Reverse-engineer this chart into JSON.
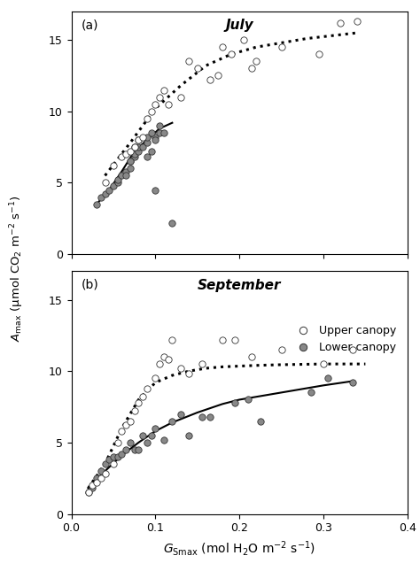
{
  "title_a": "July",
  "title_b": "September",
  "label_a": "(a)",
  "label_b": "(b)",
  "ylabel": "$A_{\\mathrm{max}}$ (μmol CO$_2$ m$^{-2}$ s$^{-1}$)",
  "xlabel": "$G_{\\mathrm{Smax}}$ (mol H$_2$O m$^{-2}$ s$^{-1}$)",
  "xlim": [
    0.0,
    0.4
  ],
  "ylim": [
    0,
    17
  ],
  "yticks": [
    0,
    5,
    10,
    15
  ],
  "xticks": [
    0.0,
    0.1,
    0.2,
    0.3,
    0.4
  ],
  "upper_color": "white",
  "lower_color": "#888888",
  "marker_edge_color": "#333333",
  "marker_size": 28,
  "july_upper_x": [
    0.04,
    0.05,
    0.06,
    0.065,
    0.07,
    0.075,
    0.08,
    0.085,
    0.09,
    0.095,
    0.1,
    0.105,
    0.11,
    0.115,
    0.13,
    0.14,
    0.15,
    0.165,
    0.175,
    0.18,
    0.19,
    0.205,
    0.215,
    0.22,
    0.25,
    0.295,
    0.32,
    0.34
  ],
  "july_upper_y": [
    5.0,
    6.2,
    6.8,
    7.0,
    7.2,
    7.5,
    8.0,
    8.2,
    9.5,
    10.0,
    10.5,
    11.0,
    11.5,
    10.5,
    11.0,
    13.5,
    13.0,
    12.2,
    12.5,
    14.5,
    14.0,
    15.0,
    13.0,
    13.5,
    14.5,
    14.0,
    16.2,
    16.3
  ],
  "july_lower_x": [
    0.03,
    0.035,
    0.04,
    0.045,
    0.05,
    0.055,
    0.055,
    0.06,
    0.065,
    0.07,
    0.07,
    0.075,
    0.075,
    0.08,
    0.08,
    0.085,
    0.09,
    0.09,
    0.095,
    0.1,
    0.1,
    0.105,
    0.105,
    0.11,
    0.065,
    0.07,
    0.075,
    0.08,
    0.09,
    0.095,
    0.1,
    0.12
  ],
  "july_lower_y": [
    3.5,
    4.0,
    4.2,
    4.5,
    4.8,
    5.0,
    5.2,
    5.5,
    5.8,
    6.0,
    6.5,
    6.8,
    7.0,
    7.2,
    7.5,
    7.5,
    7.8,
    6.8,
    7.2,
    8.2,
    8.0,
    8.5,
    9.0,
    8.5,
    5.5,
    6.5,
    7.5,
    8.0,
    8.2,
    8.5,
    4.5,
    2.2
  ],
  "july_upper_fit_x": [
    0.04,
    0.07,
    0.1,
    0.13,
    0.16,
    0.19,
    0.22,
    0.25,
    0.28,
    0.31,
    0.34
  ],
  "july_upper_fit_y": [
    5.5,
    7.8,
    10.2,
    11.8,
    13.2,
    14.0,
    14.5,
    14.8,
    15.1,
    15.3,
    15.5
  ],
  "july_lower_fit_x": [
    0.03,
    0.045,
    0.06,
    0.075,
    0.09,
    0.105,
    0.12
  ],
  "july_lower_fit_y": [
    3.5,
    4.5,
    5.8,
    7.2,
    8.0,
    8.8,
    9.2
  ],
  "sep_upper_x": [
    0.02,
    0.025,
    0.03,
    0.035,
    0.04,
    0.05,
    0.055,
    0.06,
    0.065,
    0.07,
    0.075,
    0.08,
    0.085,
    0.09,
    0.1,
    0.105,
    0.11,
    0.115,
    0.12,
    0.13,
    0.14,
    0.155,
    0.18,
    0.195,
    0.215,
    0.25,
    0.3,
    0.335
  ],
  "sep_upper_y": [
    1.5,
    2.0,
    2.2,
    2.5,
    2.8,
    3.5,
    5.0,
    5.8,
    6.2,
    6.5,
    7.2,
    7.8,
    8.2,
    8.8,
    9.5,
    10.5,
    11.0,
    10.8,
    12.2,
    10.2,
    9.8,
    10.5,
    12.2,
    12.2,
    11.0,
    11.5,
    10.5,
    11.5
  ],
  "sep_lower_x": [
    0.02,
    0.025,
    0.03,
    0.035,
    0.04,
    0.045,
    0.05,
    0.055,
    0.06,
    0.065,
    0.07,
    0.075,
    0.08,
    0.085,
    0.09,
    0.095,
    0.1,
    0.11,
    0.12,
    0.13,
    0.14,
    0.155,
    0.165,
    0.195,
    0.21,
    0.225,
    0.285,
    0.305,
    0.335
  ],
  "sep_lower_y": [
    1.5,
    1.8,
    2.5,
    3.0,
    3.5,
    3.8,
    4.0,
    4.0,
    4.2,
    4.5,
    5.0,
    4.5,
    4.5,
    5.5,
    5.0,
    5.5,
    6.0,
    5.2,
    6.5,
    7.0,
    5.5,
    6.8,
    6.8,
    7.8,
    8.0,
    6.5,
    8.5,
    9.5,
    9.2
  ],
  "sep_upper_fit_x": [
    0.02,
    0.04,
    0.06,
    0.08,
    0.1,
    0.12,
    0.14,
    0.16,
    0.18,
    0.2,
    0.22,
    0.25,
    0.3,
    0.35
  ],
  "sep_upper_fit_y": [
    1.8,
    3.5,
    6.0,
    8.0,
    9.2,
    9.7,
    10.0,
    10.2,
    10.3,
    10.35,
    10.4,
    10.45,
    10.5,
    10.5
  ],
  "sep_lower_fit_x": [
    0.02,
    0.04,
    0.06,
    0.08,
    0.1,
    0.12,
    0.15,
    0.18,
    0.2,
    0.25,
    0.3,
    0.335
  ],
  "sep_lower_fit_y": [
    1.8,
    3.0,
    4.1,
    5.0,
    5.8,
    6.4,
    7.1,
    7.7,
    8.0,
    8.5,
    9.0,
    9.3
  ],
  "legend_upper": "Upper canopy",
  "legend_lower": "Lower canopy"
}
